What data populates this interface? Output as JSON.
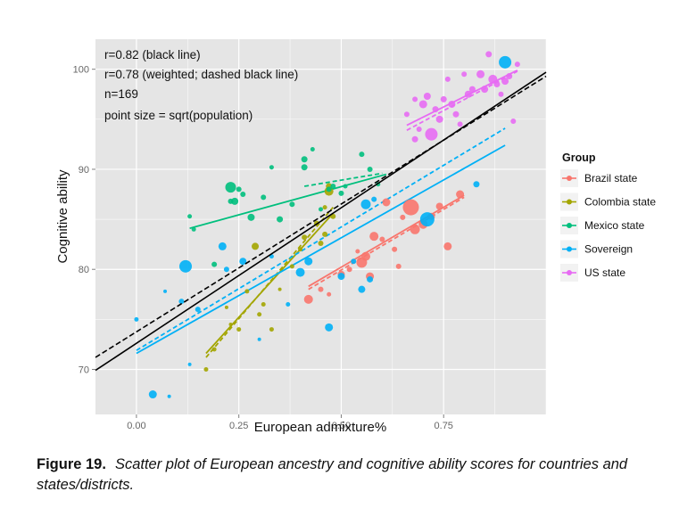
{
  "chart_data": {
    "type": "scatter",
    "title": "",
    "xlabel": "European admixture%",
    "ylabel": "Cognitive ability",
    "xlim": [
      -0.1,
      1.0
    ],
    "ylim": [
      65.5,
      103.0
    ],
    "x_ticks": [
      0.0,
      0.25,
      0.5,
      0.75
    ],
    "x_tick_labels": [
      "0.00",
      "0.25",
      "0.50",
      "0.75"
    ],
    "y_ticks": [
      70,
      80,
      90,
      100
    ],
    "y_tick_labels": [
      "70",
      "80",
      "90",
      "100"
    ],
    "grid": true,
    "annotations": [
      "r=0.82 (black line)",
      "r=0.78 (weighted; dashed black line)",
      "n=169",
      "point size = sqrt(population)"
    ],
    "legend": {
      "title": "Group",
      "position": "right",
      "entries": [
        "Brazil state",
        "Colombia state",
        "Mexico state",
        "Sovereign",
        "US state"
      ]
    },
    "overall_fit_lines": [
      {
        "name": "r=0.82 (black line)",
        "style": "solid",
        "color": "#000000",
        "x": [
          -0.1,
          1.0
        ],
        "y": [
          69.9,
          99.7
        ]
      },
      {
        "name": "weighted (dashed black line)",
        "style": "dashed",
        "color": "#000000",
        "x": [
          -0.1,
          1.0
        ],
        "y": [
          71.2,
          99.3
        ]
      }
    ],
    "series": [
      {
        "name": "Brazil state",
        "color": "#F8766D",
        "fit": {
          "x": [
            0.42,
            0.8
          ],
          "y": [
            78.3,
            87.4
          ]
        },
        "weighted_fit": {
          "x": [
            0.42,
            0.8
          ],
          "y": [
            78.0,
            87.2
          ]
        },
        "points": [
          {
            "x": 0.42,
            "y": 77.0,
            "s": 5
          },
          {
            "x": 0.45,
            "y": 78.0,
            "s": 3
          },
          {
            "x": 0.47,
            "y": 77.5,
            "s": 2.5
          },
          {
            "x": 0.5,
            "y": 79.5,
            "s": 4
          },
          {
            "x": 0.52,
            "y": 80.0,
            "s": 3
          },
          {
            "x": 0.54,
            "y": 81.8,
            "s": 2.5
          },
          {
            "x": 0.55,
            "y": 80.7,
            "s": 6
          },
          {
            "x": 0.56,
            "y": 81.3,
            "s": 5
          },
          {
            "x": 0.57,
            "y": 79.3,
            "s": 4.5
          },
          {
            "x": 0.58,
            "y": 83.3,
            "s": 5
          },
          {
            "x": 0.6,
            "y": 83.0,
            "s": 3
          },
          {
            "x": 0.61,
            "y": 86.7,
            "s": 4.5
          },
          {
            "x": 0.63,
            "y": 82.0,
            "s": 3
          },
          {
            "x": 0.64,
            "y": 80.3,
            "s": 3
          },
          {
            "x": 0.67,
            "y": 86.2,
            "s": 9
          },
          {
            "x": 0.68,
            "y": 84.0,
            "s": 5.5
          },
          {
            "x": 0.7,
            "y": 84.5,
            "s": 5
          },
          {
            "x": 0.72,
            "y": 85.3,
            "s": 4
          },
          {
            "x": 0.74,
            "y": 86.3,
            "s": 4
          },
          {
            "x": 0.76,
            "y": 82.3,
            "s": 4.5
          },
          {
            "x": 0.79,
            "y": 87.5,
            "s": 4.5
          },
          {
            "x": 0.65,
            "y": 85.2,
            "s": 3
          }
        ]
      },
      {
        "name": "Colombia state",
        "color": "#A3A500",
        "fit": {
          "x": [
            0.17,
            0.48
          ],
          "y": [
            71.6,
            85.6
          ]
        },
        "weighted_fit": {
          "x": [
            0.17,
            0.48
          ],
          "y": [
            71.2,
            86.2
          ]
        },
        "points": [
          {
            "x": 0.17,
            "y": 70.0,
            "s": 2.5
          },
          {
            "x": 0.19,
            "y": 72.0,
            "s": 2.5
          },
          {
            "x": 0.22,
            "y": 76.2,
            "s": 2
          },
          {
            "x": 0.25,
            "y": 74.0,
            "s": 2.5
          },
          {
            "x": 0.27,
            "y": 77.8,
            "s": 2.5
          },
          {
            "x": 0.29,
            "y": 82.3,
            "s": 4
          },
          {
            "x": 0.3,
            "y": 75.5,
            "s": 2.5
          },
          {
            "x": 0.31,
            "y": 76.5,
            "s": 2.5
          },
          {
            "x": 0.33,
            "y": 74.0,
            "s": 2.5
          },
          {
            "x": 0.35,
            "y": 78.0,
            "s": 2
          },
          {
            "x": 0.38,
            "y": 80.3,
            "s": 2.5
          },
          {
            "x": 0.4,
            "y": 82.0,
            "s": 2.5
          },
          {
            "x": 0.41,
            "y": 83.2,
            "s": 3
          },
          {
            "x": 0.44,
            "y": 84.6,
            "s": 3
          },
          {
            "x": 0.45,
            "y": 82.6,
            "s": 3
          },
          {
            "x": 0.46,
            "y": 86.2,
            "s": 2.5
          },
          {
            "x": 0.47,
            "y": 87.8,
            "s": 5
          },
          {
            "x": 0.47,
            "y": 88.3,
            "s": 3.5
          },
          {
            "x": 0.48,
            "y": 85.3,
            "s": 3
          },
          {
            "x": 0.46,
            "y": 83.5,
            "s": 3
          },
          {
            "x": 0.23,
            "y": 74.5,
            "s": 2
          }
        ]
      },
      {
        "name": "Mexico state",
        "color": "#00BF7D",
        "fit": {
          "x": [
            0.13,
            0.61
          ],
          "y": [
            84.1,
            89.5
          ]
        },
        "weighted_fit": {
          "x": [
            0.41,
            0.6
          ],
          "y": [
            88.3,
            89.6
          ]
        },
        "points": [
          {
            "x": 0.13,
            "y": 85.3,
            "s": 2.5
          },
          {
            "x": 0.14,
            "y": 84.0,
            "s": 2.5
          },
          {
            "x": 0.19,
            "y": 80.5,
            "s": 3
          },
          {
            "x": 0.23,
            "y": 88.2,
            "s": 6
          },
          {
            "x": 0.23,
            "y": 86.8,
            "s": 3
          },
          {
            "x": 0.24,
            "y": 86.8,
            "s": 4
          },
          {
            "x": 0.25,
            "y": 88.0,
            "s": 3
          },
          {
            "x": 0.26,
            "y": 87.5,
            "s": 3
          },
          {
            "x": 0.28,
            "y": 85.2,
            "s": 4
          },
          {
            "x": 0.31,
            "y": 87.2,
            "s": 3
          },
          {
            "x": 0.33,
            "y": 90.2,
            "s": 2.5
          },
          {
            "x": 0.35,
            "y": 85.0,
            "s": 3.5
          },
          {
            "x": 0.38,
            "y": 86.5,
            "s": 3
          },
          {
            "x": 0.41,
            "y": 90.2,
            "s": 3.5
          },
          {
            "x": 0.41,
            "y": 91.0,
            "s": 3.5
          },
          {
            "x": 0.43,
            "y": 92.0,
            "s": 2.5
          },
          {
            "x": 0.45,
            "y": 86.0,
            "s": 2.5
          },
          {
            "x": 0.47,
            "y": 88.0,
            "s": 3
          },
          {
            "x": 0.48,
            "y": 88.3,
            "s": 3
          },
          {
            "x": 0.5,
            "y": 87.6,
            "s": 3
          },
          {
            "x": 0.51,
            "y": 88.3,
            "s": 2.5
          },
          {
            "x": 0.55,
            "y": 91.5,
            "s": 3
          },
          {
            "x": 0.57,
            "y": 90.0,
            "s": 3
          },
          {
            "x": 0.59,
            "y": 88.5,
            "s": 2.5
          }
        ]
      },
      {
        "name": "Sovereign",
        "color": "#00B0F6",
        "fit": {
          "x": [
            0.0,
            0.9
          ],
          "y": [
            71.6,
            92.4
          ]
        },
        "weighted_fit": {
          "x": [
            0.0,
            0.9
          ],
          "y": [
            71.9,
            94.1
          ]
        },
        "points": [
          {
            "x": 0.0,
            "y": 75.0,
            "s": 2.5
          },
          {
            "x": 0.04,
            "y": 67.5,
            "s": 4.5
          },
          {
            "x": 0.08,
            "y": 67.3,
            "s": 2
          },
          {
            "x": 0.11,
            "y": 76.8,
            "s": 3
          },
          {
            "x": 0.12,
            "y": 80.3,
            "s": 7
          },
          {
            "x": 0.13,
            "y": 70.5,
            "s": 2
          },
          {
            "x": 0.15,
            "y": 76.0,
            "s": 3
          },
          {
            "x": 0.21,
            "y": 82.3,
            "s": 4.5
          },
          {
            "x": 0.22,
            "y": 80.0,
            "s": 3
          },
          {
            "x": 0.26,
            "y": 80.8,
            "s": 4
          },
          {
            "x": 0.3,
            "y": 73.0,
            "s": 2
          },
          {
            "x": 0.33,
            "y": 81.3,
            "s": 2.5
          },
          {
            "x": 0.37,
            "y": 76.5,
            "s": 2.5
          },
          {
            "x": 0.4,
            "y": 79.7,
            "s": 5
          },
          {
            "x": 0.42,
            "y": 80.8,
            "s": 4.5
          },
          {
            "x": 0.47,
            "y": 74.2,
            "s": 4.5
          },
          {
            "x": 0.5,
            "y": 79.3,
            "s": 4
          },
          {
            "x": 0.53,
            "y": 80.8,
            "s": 3
          },
          {
            "x": 0.55,
            "y": 78.0,
            "s": 4
          },
          {
            "x": 0.56,
            "y": 86.5,
            "s": 5.5
          },
          {
            "x": 0.57,
            "y": 79.0,
            "s": 3.5
          },
          {
            "x": 0.58,
            "y": 87.0,
            "s": 3
          },
          {
            "x": 0.71,
            "y": 85.0,
            "s": 8
          },
          {
            "x": 0.83,
            "y": 88.5,
            "s": 3.5
          },
          {
            "x": 0.9,
            "y": 100.7,
            "s": 7
          },
          {
            "x": 0.07,
            "y": 77.8,
            "s": 2
          }
        ]
      },
      {
        "name": "US state",
        "color": "#E76BF3",
        "fit": {
          "x": [
            0.66,
            0.93
          ],
          "y": [
            94.4,
            99.9
          ]
        },
        "weighted_fit": {
          "x": [
            0.66,
            0.93
          ],
          "y": [
            93.9,
            99.8
          ]
        },
        "points": [
          {
            "x": 0.66,
            "y": 95.5,
            "s": 3
          },
          {
            "x": 0.68,
            "y": 93.0,
            "s": 3.5
          },
          {
            "x": 0.69,
            "y": 94.0,
            "s": 3
          },
          {
            "x": 0.7,
            "y": 96.5,
            "s": 4.5
          },
          {
            "x": 0.71,
            "y": 97.3,
            "s": 4
          },
          {
            "x": 0.72,
            "y": 93.5,
            "s": 7
          },
          {
            "x": 0.73,
            "y": 96.0,
            "s": 3.5
          },
          {
            "x": 0.74,
            "y": 95.0,
            "s": 4
          },
          {
            "x": 0.75,
            "y": 97.0,
            "s": 3.5
          },
          {
            "x": 0.76,
            "y": 99.0,
            "s": 3
          },
          {
            "x": 0.77,
            "y": 96.5,
            "s": 4
          },
          {
            "x": 0.78,
            "y": 95.5,
            "s": 3.5
          },
          {
            "x": 0.79,
            "y": 94.5,
            "s": 3
          },
          {
            "x": 0.8,
            "y": 99.5,
            "s": 3
          },
          {
            "x": 0.81,
            "y": 97.5,
            "s": 4
          },
          {
            "x": 0.82,
            "y": 98.0,
            "s": 3.5
          },
          {
            "x": 0.84,
            "y": 99.5,
            "s": 4.5
          },
          {
            "x": 0.85,
            "y": 98.0,
            "s": 4
          },
          {
            "x": 0.86,
            "y": 101.5,
            "s": 3.5
          },
          {
            "x": 0.87,
            "y": 99.0,
            "s": 5
          },
          {
            "x": 0.88,
            "y": 98.5,
            "s": 3.5
          },
          {
            "x": 0.89,
            "y": 97.5,
            "s": 3
          },
          {
            "x": 0.9,
            "y": 98.8,
            "s": 4
          },
          {
            "x": 0.91,
            "y": 99.3,
            "s": 3.5
          },
          {
            "x": 0.92,
            "y": 94.8,
            "s": 3
          },
          {
            "x": 0.93,
            "y": 100.5,
            "s": 3
          },
          {
            "x": 0.68,
            "y": 97.0,
            "s": 3
          }
        ]
      }
    ]
  },
  "caption": {
    "label": "Figure 19.",
    "text": "Scatter plot of European ancestry and cognitive ability scores for countries and states/districts."
  }
}
